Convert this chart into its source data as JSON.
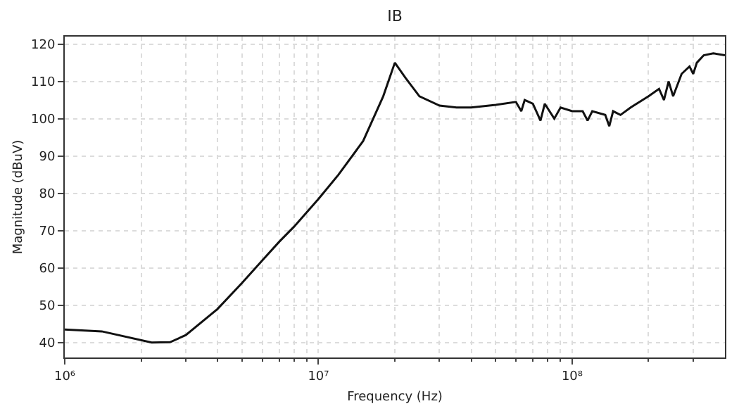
{
  "chart_data": {
    "type": "line",
    "title": "IB",
    "xlabel": "Frequency (Hz)",
    "ylabel": "Magnitude (dBuV)",
    "log": "x",
    "grid": true,
    "marker": "none",
    "line_style": "solid",
    "xlim": [
      1000000,
      400000000
    ],
    "xticks": [
      {
        "value": 1000000,
        "label": "10⁶"
      },
      {
        "value": 10000000,
        "label": "10⁷"
      },
      {
        "value": 100000000,
        "label": "10⁸"
      }
    ],
    "ylim": [
      36,
      122
    ],
    "yticks": [
      40,
      50,
      60,
      70,
      80,
      90,
      100,
      110,
      120
    ],
    "series": [
      {
        "color": "#111111",
        "x": [
          1000000,
          1400000,
          2200000,
          2600000,
          3000000,
          4000000,
          5000000,
          6000000,
          7000000,
          8000000,
          10000000,
          12000000,
          15000000,
          18000000,
          20000000,
          22000000,
          25000000,
          30000000,
          35000000,
          40000000,
          50000000,
          60000000,
          63000000,
          65000000,
          70000000,
          75000000,
          78000000,
          85000000,
          90000000,
          100000000,
          110000000,
          115000000,
          120000000,
          135000000,
          140000000,
          145000000,
          155000000,
          170000000,
          200000000,
          220000000,
          230000000,
          240000000,
          250000000,
          270000000,
          290000000,
          300000000,
          310000000,
          330000000,
          360000000,
          400000000
        ],
        "values": [
          43.5,
          43,
          40,
          40.1,
          42,
          49,
          56,
          62,
          67,
          71,
          78.5,
          85,
          94,
          106,
          115,
          111,
          106,
          103.5,
          103,
          103,
          103.7,
          104.5,
          102,
          105,
          104,
          99.5,
          104,
          100,
          103,
          102,
          102,
          99.5,
          102,
          101,
          98,
          102,
          101,
          103,
          106,
          108,
          105,
          110,
          106,
          112,
          114,
          112,
          115,
          117,
          117.5,
          117
        ]
      }
    ]
  }
}
